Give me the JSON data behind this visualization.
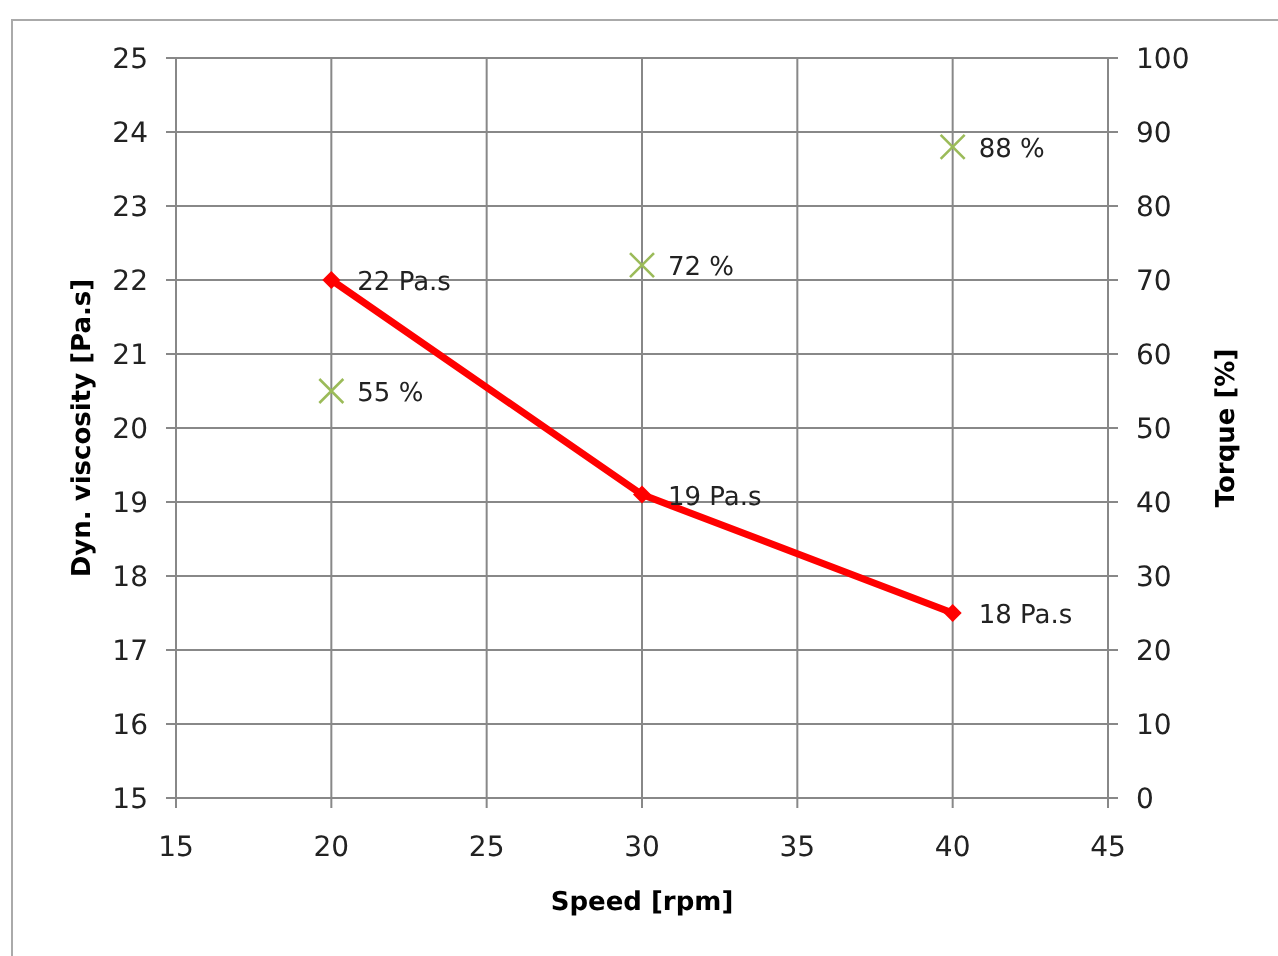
{
  "chart_data": {
    "type": "line",
    "xlabel": "Speed [rpm]",
    "ylabel": "Dyn. viscosity  [Pa.s]",
    "y2label": "Torque [%]",
    "x": [
      20,
      30,
      40
    ],
    "series": [
      {
        "color": "#ff0000",
        "values": [
          22,
          19.1,
          17.5
        ],
        "marker": "diamond",
        "line_style": "solid",
        "value_labels": [
          "22 Pa.s",
          "19 Pa.s",
          "18 Pa.s"
        ]
      },
      {
        "type": "scatter",
        "color": "#9bbb59",
        "values": [
          55,
          72,
          88
        ],
        "marker": "cross",
        "axis": "y2",
        "value_labels": [
          "55 %",
          "72 %",
          "88 %"
        ]
      }
    ],
    "xlim": [
      15,
      45
    ],
    "xticks": [
      15,
      20,
      25,
      30,
      35,
      40,
      45
    ],
    "ylim": [
      15,
      25
    ],
    "yticks": [
      15,
      16,
      17,
      18,
      19,
      20,
      21,
      22,
      23,
      24,
      25
    ],
    "y2lim": [
      0,
      100
    ],
    "y2ticks": [
      0,
      10,
      20,
      30,
      40,
      50,
      60,
      70,
      80,
      90,
      100
    ],
    "grid": true
  }
}
